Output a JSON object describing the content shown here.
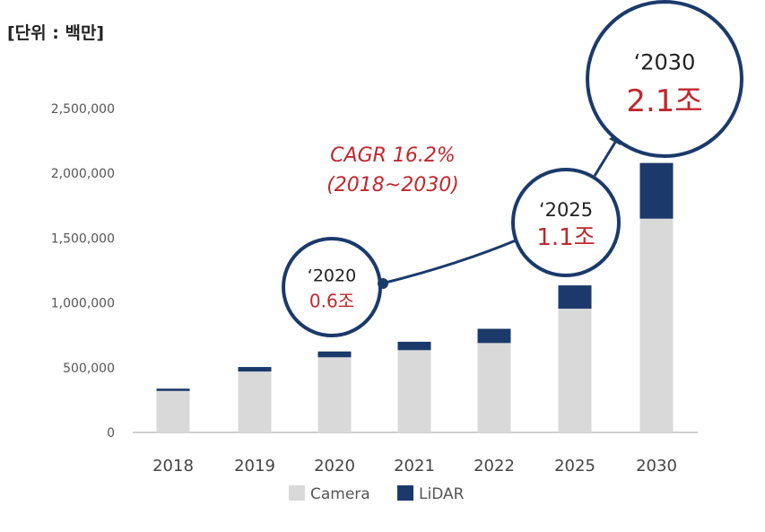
{
  "unit_label": "[단위 : 백만]",
  "chart_data": {
    "type": "bar",
    "stacked": true,
    "categories": [
      "2018",
      "2019",
      "2020",
      "2021",
      "2022",
      "2025",
      "2030"
    ],
    "series": [
      {
        "name": "Camera",
        "color": "#d9d9d9",
        "values": [
          320000,
          470000,
          580000,
          635000,
          690000,
          955000,
          1650000
        ]
      },
      {
        "name": "LiDAR",
        "color": "#1b3a6b",
        "values": [
          18000,
          35000,
          45000,
          65000,
          110000,
          180000,
          430000
        ]
      }
    ],
    "ylim": [
      0,
      2500000
    ],
    "yticks": [
      0,
      500000,
      1000000,
      1500000,
      2000000,
      2500000
    ],
    "ytick_labels": [
      "0",
      "500,000",
      "1,000,000",
      "1,500,000",
      "2,000,000",
      "2,500,000"
    ],
    "grid": false,
    "legend_position": "bottom",
    "annotations": {
      "cagr": [
        "CAGR 16.2%",
        "(2018~2030)"
      ],
      "callouts": [
        {
          "category": "2020",
          "year": "‘2020",
          "value": "0.6조"
        },
        {
          "category": "2025",
          "year": "‘2025",
          "value": "1.1조"
        },
        {
          "category": "2030",
          "year": "‘2030",
          "value": "2.1조"
        }
      ]
    }
  }
}
